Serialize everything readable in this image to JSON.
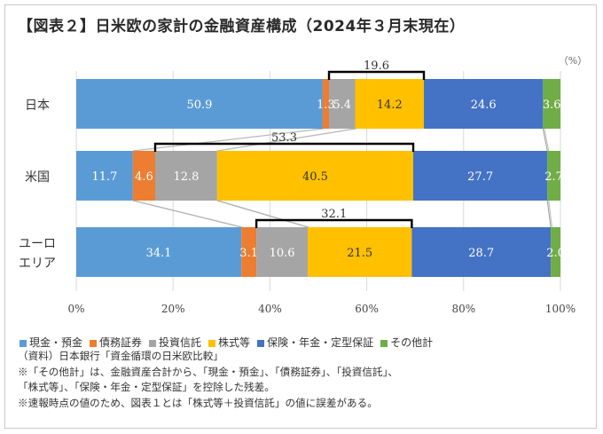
{
  "title": "【図表２】日米欧の家計の金融資産構成（2024年３月末現在）",
  "unit_label": "（%）",
  "chart_data": {
    "type": "bar",
    "stacked": true,
    "orientation": "horizontal",
    "categories": [
      "日本",
      "米国",
      "ユーロエリア"
    ],
    "category_lines": [
      [
        "日本"
      ],
      [
        "米国"
      ],
      [
        "ユーロ",
        "エリア"
      ]
    ],
    "series": [
      {
        "name": "現金・預金",
        "color": "#5b9bd5",
        "values": [
          50.9,
          11.7,
          34.1
        ],
        "labels": [
          "50.9",
          "11.7",
          "34.1"
        ]
      },
      {
        "name": "債務証券",
        "color": "#ed7d31",
        "values": [
          1.3,
          4.6,
          3.1
        ],
        "labels": [
          "1.3",
          "4.6",
          "3.1"
        ]
      },
      {
        "name": "投資信託",
        "color": "#a5a5a5",
        "values": [
          5.4,
          12.8,
          10.6
        ],
        "labels": [
          "5.4",
          "12.8",
          "10.6"
        ]
      },
      {
        "name": "株式等",
        "color": "#ffc000",
        "values": [
          14.2,
          40.5,
          21.5
        ],
        "labels": [
          "14.2",
          "40.5",
          "21.5"
        ]
      },
      {
        "name": "保険・年金・定型保証",
        "color": "#4472c4",
        "values": [
          24.6,
          27.7,
          28.7
        ],
        "labels": [
          "24.6",
          "27.7",
          "28.7"
        ]
      },
      {
        "name": "その他計",
        "color": "#70ad47",
        "values": [
          3.6,
          2.7,
          2.0
        ],
        "labels": [
          "3.6",
          "2.7",
          "2.0"
        ]
      }
    ],
    "bracket_values": [
      "19.6",
      "53.3",
      "32.1"
    ],
    "xlim": [
      0,
      100
    ],
    "xticks": [
      0,
      20,
      40,
      60,
      80,
      100
    ],
    "xtick_labels": [
      "0%",
      "20%",
      "40%",
      "60%",
      "80%",
      "100%"
    ],
    "legend_position": "bottom"
  },
  "notes": [
    "（資料）日本銀行「資金循環の日米欧比較」",
    "※「その他計」は、金融資産合計から、「現金・預金」、「債務証券」、「投資信託」、",
    "「株式等」、「保険・年金・定型保証」を控除した残差。",
    "※速報時点の値のため、図表１とは「株式等＋投資信託」の値に誤差がある。"
  ]
}
